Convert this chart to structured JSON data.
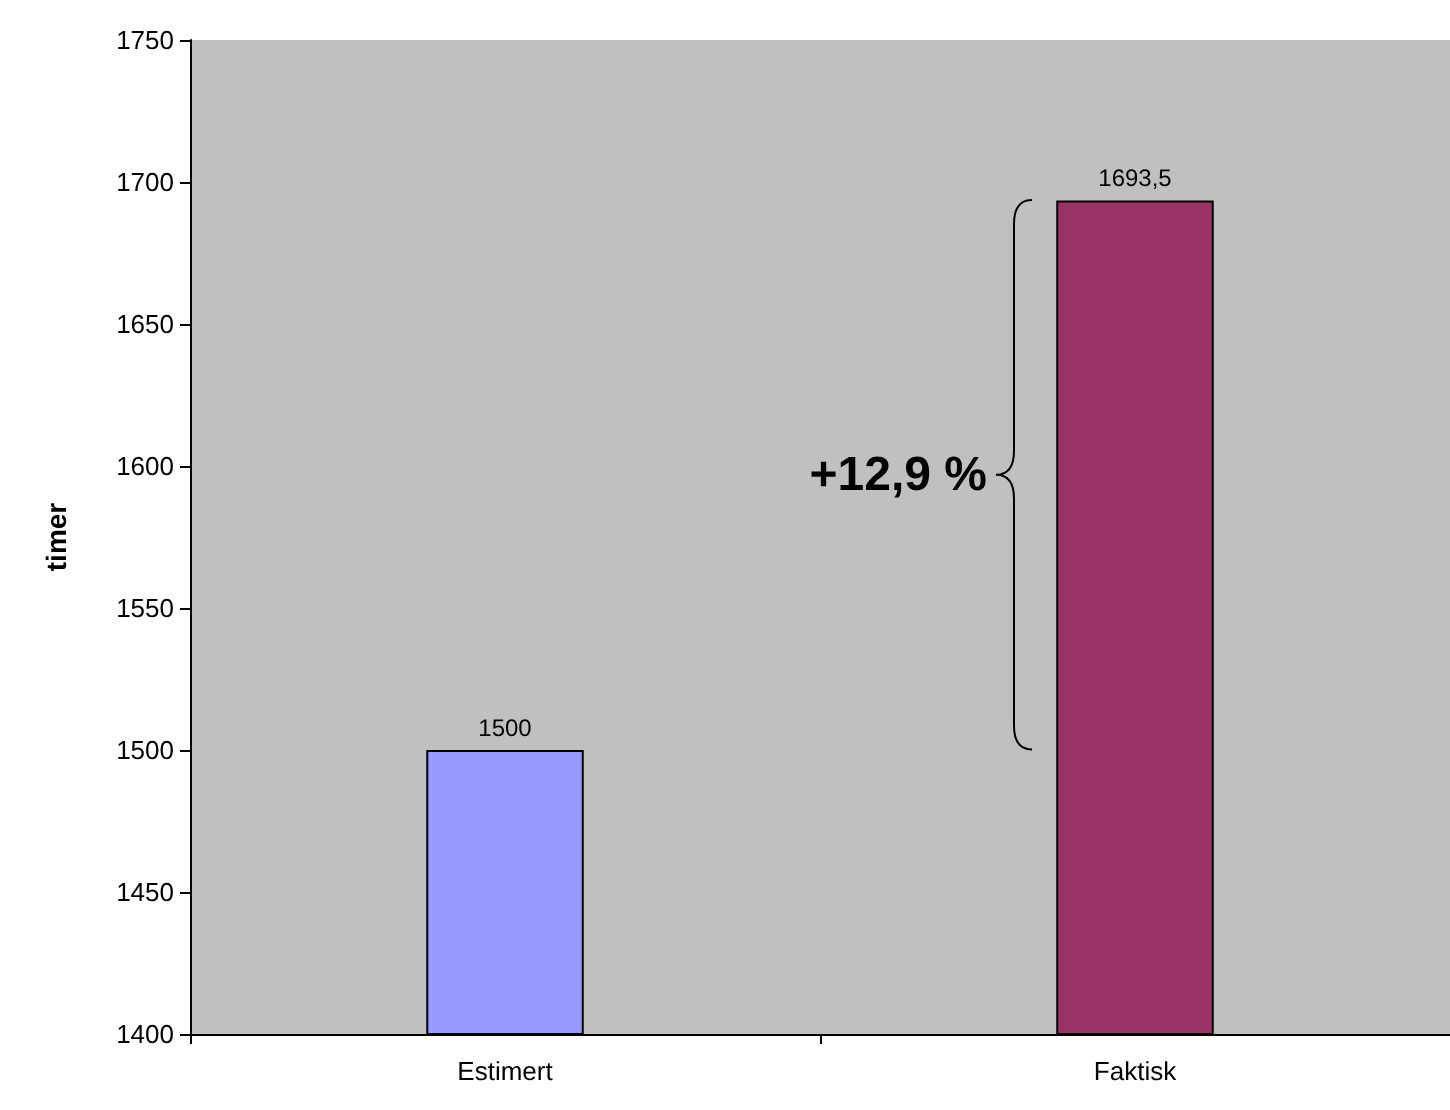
{
  "chart_data": {
    "type": "bar",
    "ylabel": "timer",
    "categories": [
      "Estimert",
      "Faktisk"
    ],
    "values": [
      1500,
      1693.5
    ],
    "colors": [
      "#9999ff",
      "#993366"
    ],
    "value_labels": [
      "1500",
      "1693,5"
    ],
    "ylim": [
      1400,
      1750
    ],
    "yticks": [
      1400,
      1450,
      1500,
      1550,
      1600,
      1650,
      1700,
      1750
    ],
    "grid": false,
    "annotations": [
      "+12,9 %"
    ]
  }
}
